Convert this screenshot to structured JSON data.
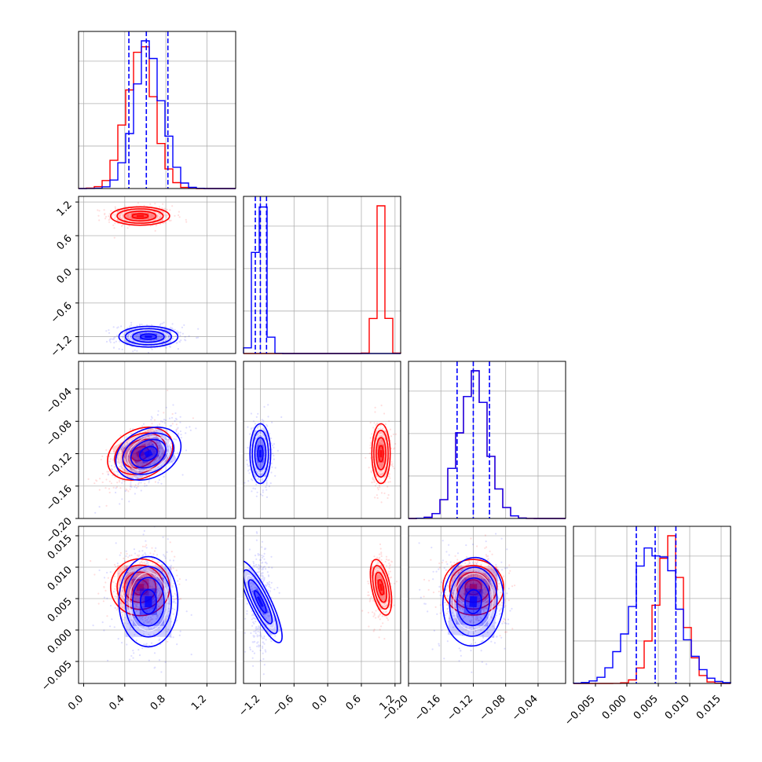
{
  "chart_data": {
    "type": "scatter",
    "kind": "corner plot (pairwise marginal histograms and 2D density contours)",
    "grid": true,
    "colors": {
      "red": "#ff0000",
      "blue": "#0000ff"
    },
    "parameters": [
      {
        "range": [
          -0.05,
          1.48
        ],
        "ticks": [
          "0.0",
          "0.4",
          "0.8",
          "1.2"
        ],
        "tick_values": [
          0.0,
          0.4,
          0.8,
          1.2
        ]
      },
      {
        "range": [
          -1.5,
          1.3
        ],
        "ticks": [
          "-1.2",
          "-0.6",
          "0.0",
          "0.6",
          "1.2"
        ],
        "tick_values": [
          -1.2,
          -0.6,
          0.0,
          0.6,
          1.2
        ]
      },
      {
        "range": [
          -0.2,
          -0.006
        ],
        "ticks": [
          "-0.20",
          "-0.16",
          "-0.12",
          "-0.08",
          "-0.04"
        ],
        "tick_values": [
          -0.2,
          -0.16,
          -0.12,
          -0.08,
          -0.04
        ]
      },
      {
        "range": [
          -0.0085,
          0.0165
        ],
        "ticks": [
          "-0.005",
          "0.000",
          "0.005",
          "0.010",
          "0.015"
        ],
        "tick_values": [
          -0.005,
          0.0,
          0.005,
          0.01,
          0.015
        ]
      }
    ],
    "series": [
      {
        "color": "#ff0000",
        "centers": [
          0.55,
          0.95,
          -0.12,
          0.0068
        ],
        "sigmas": [
          0.14,
          0.08,
          0.018,
          0.0022
        ]
      },
      {
        "color": "#0000ff",
        "centers": [
          0.63,
          -1.2,
          -0.12,
          0.0045
        ],
        "sigmas": [
          0.14,
          0.09,
          0.018,
          0.0035
        ]
      }
    ],
    "quantiles_blue": [
      [
        0.44,
        0.61,
        0.82
      ],
      [
        -1.29,
        -1.2,
        -1.09
      ],
      [
        -0.14,
        -0.12,
        -0.1
      ],
      [
        0.0015,
        0.0045,
        0.0078
      ]
    ]
  }
}
